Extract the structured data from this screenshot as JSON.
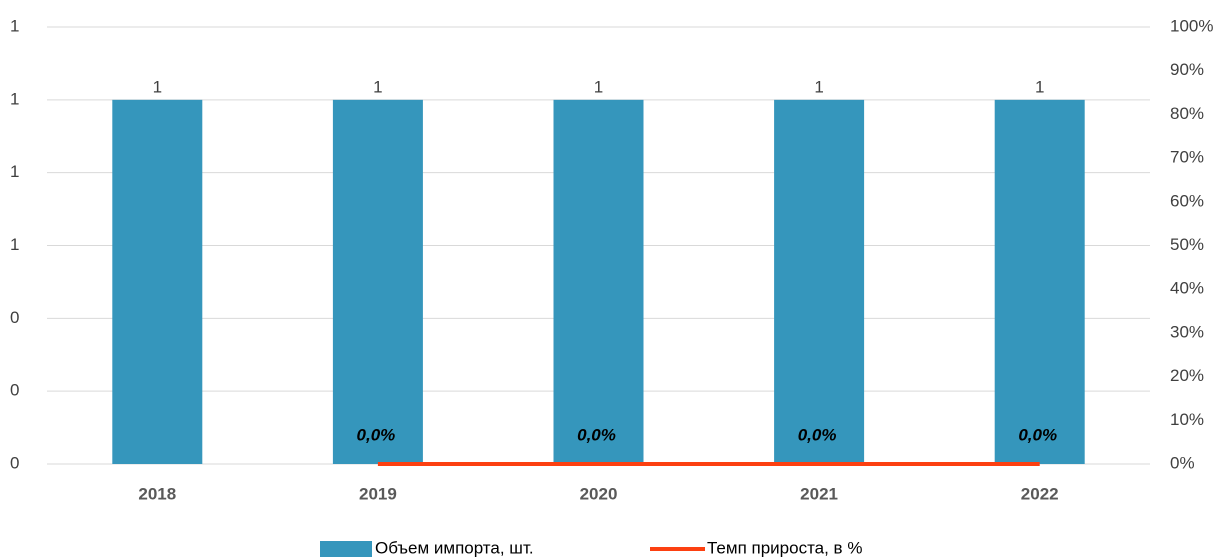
{
  "chart_data": {
    "type": "bar",
    "categories": [
      "2018",
      "2019",
      "2020",
      "2021",
      "2022"
    ],
    "series": [
      {
        "name": "Объем импорта, шт.",
        "type": "bar",
        "color": "#3596bc",
        "values": [
          1,
          1,
          1,
          1,
          1
        ]
      },
      {
        "name": "Темп прироста, в %",
        "type": "line",
        "axis": "y2",
        "color": "#fc4011",
        "values": [
          null,
          0,
          0,
          0,
          0
        ],
        "value_labels": [
          null,
          "0,0%",
          "0,0%",
          "0,0%",
          "0,0%"
        ]
      }
    ],
    "ylim": [
      0,
      1.2
    ],
    "yticks": [
      0,
      {
        "value": 0.2,
        "label": "0"
      },
      {
        "value": 0.4,
        "label": "0"
      },
      {
        "value": 0.6,
        "label": "1"
      },
      {
        "value": 0.8,
        "label": "1"
      },
      1,
      {
        "value": 1.2,
        "label": "1"
      }
    ],
    "y2lim": [
      0,
      100
    ],
    "y2ticks": [
      {
        "value": 0,
        "label": "0%"
      },
      {
        "value": 10,
        "label": "10%"
      },
      {
        "value": 20,
        "label": "20%"
      },
      {
        "value": 30,
        "label": "30%"
      },
      {
        "value": 40,
        "label": "40%"
      },
      {
        "value": 50,
        "label": "50%"
      },
      {
        "value": 60,
        "label": "60%"
      },
      {
        "value": 70,
        "label": "70%"
      },
      {
        "value": 80,
        "label": "80%"
      },
      {
        "value": 90,
        "label": "90%"
      },
      {
        "value": 100,
        "label": "100%"
      }
    ],
    "grid": true,
    "legend": "bottom"
  }
}
